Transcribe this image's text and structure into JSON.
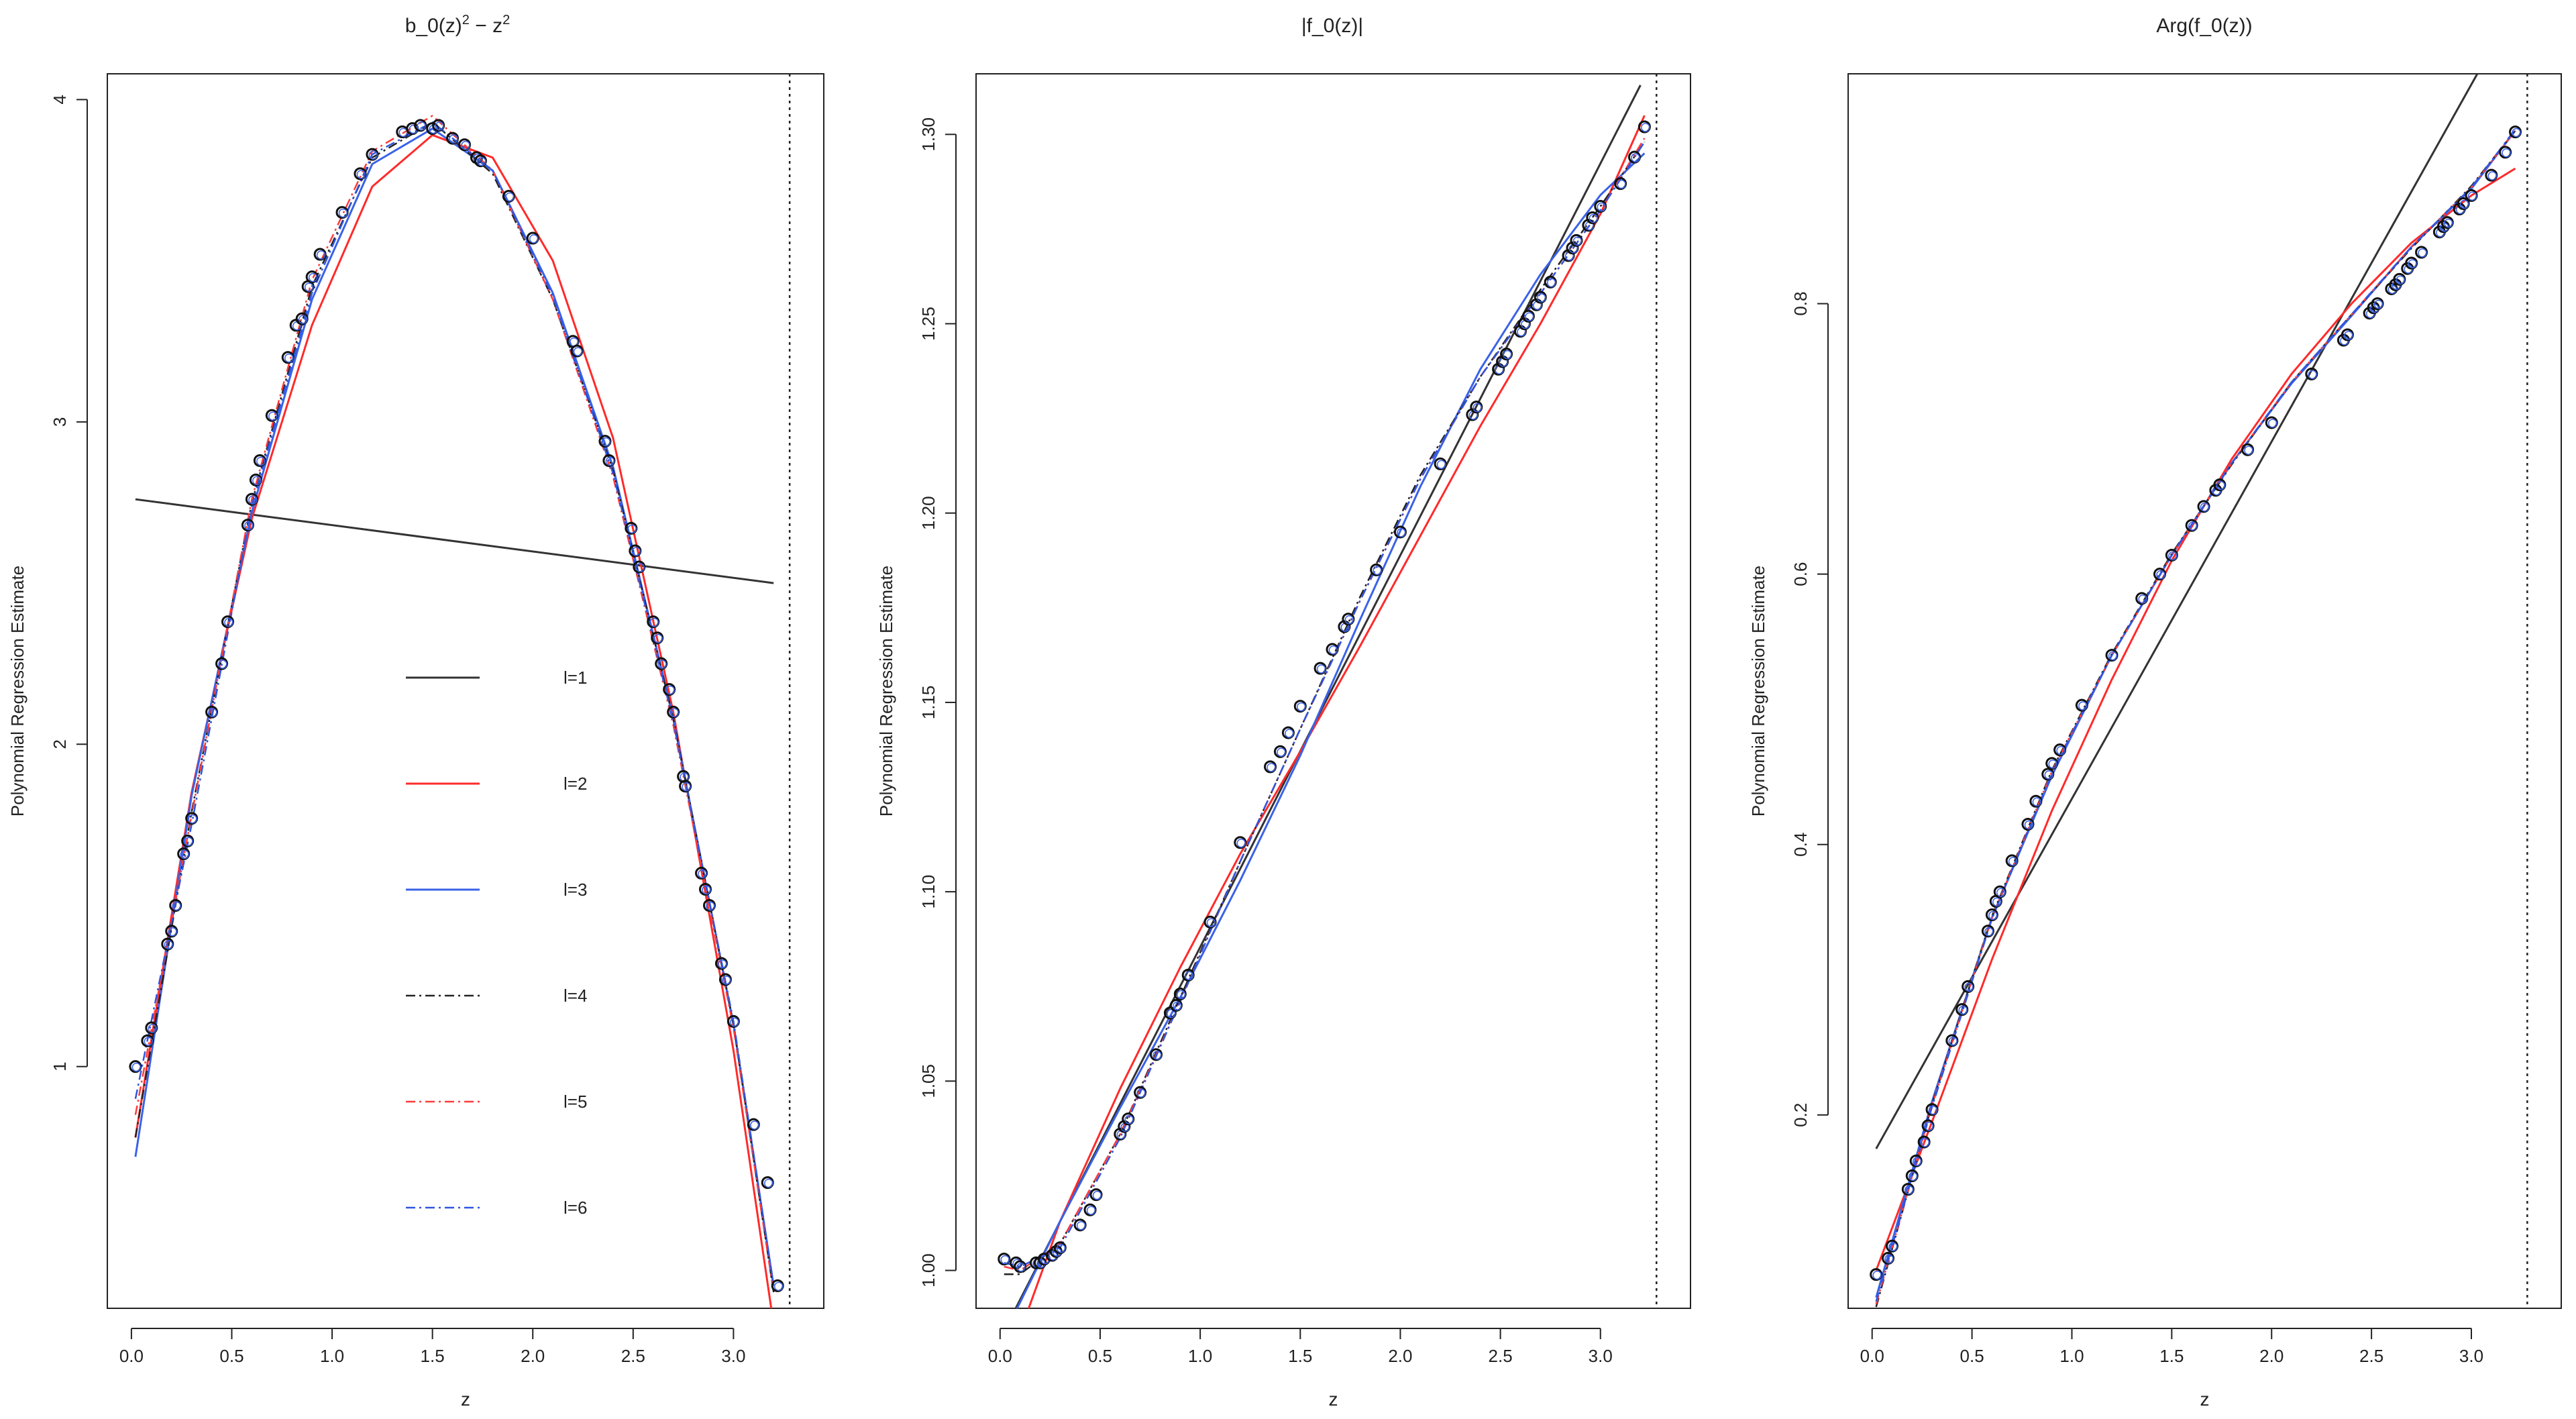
{
  "colors": {
    "l1": "#333333",
    "l2": "#ff2a2a",
    "l3": "#3a62e8",
    "l4": "#222222",
    "l5": "#ff3b3b",
    "l6": "#2f55e0",
    "points": "#111111",
    "background": "#ffffff"
  },
  "chart_data": [
    {
      "type": "scatter",
      "title": "b_0(z)^2 − z^2",
      "title_parts": {
        "base": "b_0(z)",
        "exp1": "2",
        "mid": " − z",
        "exp2": "2"
      },
      "xlabel": "z",
      "ylabel": "Polynomial Regression Estimate",
      "xlim": [
        -0.12,
        3.45
      ],
      "ylim": [
        0.25,
        4.08
      ],
      "xticks": [
        0.0,
        0.5,
        1.0,
        1.5,
        2.0,
        2.5,
        3.0
      ],
      "xtick_labels": [
        "0.0",
        "0.5",
        "1.0",
        "1.5",
        "2.0",
        "2.5",
        "3.0"
      ],
      "yticks": [
        1,
        2,
        3,
        4
      ],
      "ytick_labels": [
        "1",
        "2",
        "3",
        "4"
      ],
      "vline_x": 3.28,
      "legend": {
        "placement": "center-left",
        "entries": [
          {
            "label": "l=1",
            "style": "solid"
          },
          {
            "label": "l=2",
            "style": "solid"
          },
          {
            "label": "l=3",
            "style": "solid"
          },
          {
            "label": "l=4",
            "style": "dashdot"
          },
          {
            "label": "l=5",
            "style": "dashdot"
          },
          {
            "label": "l=6",
            "style": "dashdot"
          }
        ]
      },
      "points": {
        "x": [
          0.02,
          0.08,
          0.1,
          0.18,
          0.2,
          0.22,
          0.26,
          0.28,
          0.3,
          0.4,
          0.45,
          0.48,
          0.58,
          0.6,
          0.62,
          0.64,
          0.7,
          0.78,
          0.82,
          0.85,
          0.88,
          0.9,
          0.94,
          1.05,
          1.14,
          1.2,
          1.35,
          1.4,
          1.44,
          1.5,
          1.53,
          1.6,
          1.66,
          1.72,
          1.74,
          1.88,
          2.0,
          2.2,
          2.22,
          2.36,
          2.38,
          2.49,
          2.51,
          2.53,
          2.6,
          2.62,
          2.64,
          2.68,
          2.7,
          2.75,
          2.76,
          2.84,
          2.86,
          2.88,
          2.94,
          2.96,
          3.0,
          3.1,
          3.17,
          3.22
        ],
        "y": [
          1.0,
          1.08,
          1.12,
          1.38,
          1.42,
          1.5,
          1.66,
          1.7,
          1.77,
          2.1,
          2.25,
          2.38,
          2.68,
          2.76,
          2.82,
          2.88,
          3.02,
          3.2,
          3.3,
          3.32,
          3.42,
          3.45,
          3.52,
          3.65,
          3.77,
          3.83,
          3.9,
          3.91,
          3.92,
          3.91,
          3.92,
          3.88,
          3.86,
          3.82,
          3.81,
          3.7,
          3.57,
          3.25,
          3.22,
          2.94,
          2.88,
          2.67,
          2.6,
          2.55,
          2.38,
          2.33,
          2.25,
          2.17,
          2.1,
          1.9,
          1.87,
          1.6,
          1.55,
          1.5,
          1.32,
          1.27,
          1.14,
          0.82,
          0.64,
          0.32
        ]
      },
      "series": [
        {
          "name": "l=1",
          "x": [
            0.02,
            3.2
          ],
          "y": [
            2.76,
            2.5
          ]
        },
        {
          "name": "l=2",
          "x": [
            0.02,
            0.3,
            0.6,
            0.9,
            1.2,
            1.5,
            1.8,
            2.1,
            2.4,
            2.7,
            3.0,
            3.2
          ],
          "y": [
            0.78,
            1.85,
            2.7,
            3.3,
            3.73,
            3.89,
            3.82,
            3.5,
            2.95,
            2.1,
            1.05,
            0.2
          ]
        },
        {
          "name": "l=3",
          "x": [
            0.02,
            0.3,
            0.6,
            0.9,
            1.2,
            1.5,
            1.8,
            2.1,
            2.4,
            2.7,
            3.0,
            3.2
          ],
          "y": [
            0.72,
            1.84,
            2.72,
            3.38,
            3.8,
            3.91,
            3.78,
            3.4,
            2.86,
            2.08,
            1.13,
            0.32
          ]
        },
        {
          "name": "l=4",
          "x": [
            0.02,
            0.3,
            0.6,
            0.9,
            1.2,
            1.5,
            1.8,
            2.1,
            2.4,
            2.7,
            3.0,
            3.2
          ],
          "y": [
            0.78,
            1.79,
            2.75,
            3.42,
            3.82,
            3.93,
            3.77,
            3.38,
            2.85,
            2.08,
            1.13,
            0.3
          ]
        },
        {
          "name": "l=5",
          "x": [
            0.02,
            0.3,
            0.6,
            0.9,
            1.2,
            1.5,
            1.8,
            2.1,
            2.4,
            2.7,
            3.0,
            3.2
          ],
          "y": [
            0.85,
            1.78,
            2.76,
            3.44,
            3.84,
            3.95,
            3.78,
            3.38,
            2.83,
            2.06,
            1.12,
            0.3
          ]
        },
        {
          "name": "l=6",
          "x": [
            0.02,
            0.3,
            0.6,
            0.9,
            1.2,
            1.5,
            1.8,
            2.1,
            2.4,
            2.7,
            3.0,
            3.2
          ],
          "y": [
            0.9,
            1.75,
            2.74,
            3.4,
            3.83,
            3.93,
            3.78,
            3.39,
            2.84,
            2.07,
            1.14,
            0.32
          ]
        }
      ]
    },
    {
      "type": "scatter",
      "title": "|f_0(z)|",
      "xlabel": "z",
      "ylabel": "Polynomial Regression Estimate",
      "xlim": [
        -0.12,
        3.45
      ],
      "ylim": [
        0.99,
        1.316
      ],
      "xticks": [
        0.0,
        0.5,
        1.0,
        1.5,
        2.0,
        2.5,
        3.0
      ],
      "xtick_labels": [
        "0.0",
        "0.5",
        "1.0",
        "1.5",
        "2.0",
        "2.5",
        "3.0"
      ],
      "yticks": [
        1.0,
        1.05,
        1.1,
        1.15,
        1.2,
        1.25,
        1.3
      ],
      "ytick_labels": [
        "1.00",
        "1.05",
        "1.10",
        "1.15",
        "1.20",
        "1.25",
        "1.30"
      ],
      "vline_x": 3.28,
      "points": {
        "x": [
          0.02,
          0.08,
          0.1,
          0.18,
          0.2,
          0.22,
          0.26,
          0.28,
          0.3,
          0.4,
          0.45,
          0.48,
          0.6,
          0.62,
          0.64,
          0.7,
          0.78,
          0.85,
          0.88,
          0.9,
          0.94,
          1.05,
          1.2,
          1.35,
          1.4,
          1.44,
          1.5,
          1.6,
          1.66,
          1.72,
          1.74,
          1.88,
          2.0,
          2.2,
          2.36,
          2.38,
          2.49,
          2.51,
          2.53,
          2.6,
          2.62,
          2.64,
          2.68,
          2.7,
          2.75,
          2.84,
          2.86,
          2.88,
          2.94,
          2.96,
          3.0,
          3.1,
          3.17,
          3.22
        ],
        "y": [
          1.003,
          1.002,
          1.001,
          1.002,
          1.002,
          1.003,
          1.004,
          1.005,
          1.006,
          1.012,
          1.016,
          1.02,
          1.036,
          1.038,
          1.04,
          1.047,
          1.057,
          1.068,
          1.07,
          1.073,
          1.078,
          1.092,
          1.113,
          1.133,
          1.137,
          1.142,
          1.149,
          1.159,
          1.164,
          1.17,
          1.172,
          1.185,
          1.195,
          1.213,
          1.226,
          1.228,
          1.238,
          1.24,
          1.242,
          1.248,
          1.25,
          1.252,
          1.255,
          1.257,
          1.261,
          1.268,
          1.27,
          1.272,
          1.276,
          1.278,
          1.281,
          1.287,
          1.294,
          1.302
        ]
      },
      "series": [
        {
          "name": "l=1",
          "x": [
            0.02,
            3.2
          ],
          "y": [
            0.984,
            1.313
          ]
        },
        {
          "name": "l=2",
          "x": [
            0.02,
            0.3,
            0.6,
            0.9,
            1.2,
            1.5,
            1.8,
            2.1,
            2.4,
            2.7,
            3.0,
            3.22
          ],
          "y": [
            0.972,
            1.013,
            1.048,
            1.08,
            1.11,
            1.137,
            1.165,
            1.194,
            1.223,
            1.25,
            1.279,
            1.305
          ]
        },
        {
          "name": "l=3",
          "x": [
            0.02,
            0.3,
            0.6,
            0.9,
            1.2,
            1.5,
            1.8,
            2.1,
            2.4,
            2.7,
            3.0,
            3.22
          ],
          "y": [
            0.983,
            1.013,
            1.043,
            1.072,
            1.103,
            1.136,
            1.172,
            1.207,
            1.238,
            1.263,
            1.284,
            1.295
          ]
        },
        {
          "name": "l=4",
          "x": [
            0.02,
            0.1,
            0.3,
            0.6,
            0.9,
            1.2,
            1.5,
            1.8,
            2.1,
            2.4,
            2.7,
            3.0,
            3.22
          ],
          "y": [
            0.999,
            0.999,
            1.007,
            1.036,
            1.072,
            1.108,
            1.143,
            1.178,
            1.21,
            1.236,
            1.259,
            1.281,
            1.298
          ]
        },
        {
          "name": "l=5",
          "x": [
            0.02,
            0.1,
            0.3,
            0.6,
            0.9,
            1.2,
            1.5,
            1.8,
            2.1,
            2.4,
            2.7,
            3.0,
            3.22
          ],
          "y": [
            1.001,
            1.0,
            1.007,
            1.036,
            1.071,
            1.108,
            1.143,
            1.177,
            1.209,
            1.236,
            1.258,
            1.28,
            1.299
          ]
        },
        {
          "name": "l=6",
          "x": [
            0.02,
            0.1,
            0.3,
            0.6,
            0.9,
            1.2,
            1.5,
            1.8,
            2.1,
            2.4,
            2.7,
            3.0,
            3.22
          ],
          "y": [
            1.002,
            1.001,
            1.006,
            1.035,
            1.071,
            1.108,
            1.143,
            1.177,
            1.209,
            1.236,
            1.258,
            1.28,
            1.298
          ]
        }
      ]
    },
    {
      "type": "scatter",
      "title": "Arg(f_0(z))",
      "xlabel": "z",
      "ylabel": "Polynomial Regression Estimate",
      "xlim": [
        -0.12,
        3.45
      ],
      "ylim": [
        0.057,
        0.97
      ],
      "xticks": [
        0.0,
        0.5,
        1.0,
        1.5,
        2.0,
        2.5,
        3.0
      ],
      "xtick_labels": [
        "0.0",
        "0.5",
        "1.0",
        "1.5",
        "2.0",
        "2.5",
        "3.0"
      ],
      "yticks": [
        0.2,
        0.4,
        0.6,
        0.8
      ],
      "ytick_labels": [
        "0.2",
        "0.4",
        "0.6",
        "0.8"
      ],
      "vline_x": 3.28,
      "points": {
        "x": [
          0.02,
          0.08,
          0.1,
          0.18,
          0.2,
          0.22,
          0.26,
          0.28,
          0.3,
          0.4,
          0.45,
          0.48,
          0.58,
          0.6,
          0.62,
          0.64,
          0.7,
          0.78,
          0.82,
          0.88,
          0.9,
          0.94,
          1.05,
          1.2,
          1.35,
          1.44,
          1.5,
          1.6,
          1.66,
          1.72,
          1.74,
          1.88,
          2.0,
          2.2,
          2.36,
          2.38,
          2.49,
          2.51,
          2.53,
          2.6,
          2.62,
          2.64,
          2.68,
          2.7,
          2.75,
          2.84,
          2.86,
          2.88,
          2.94,
          2.96,
          3.0,
          3.1,
          3.17,
          3.22
        ],
        "y": [
          0.082,
          0.094,
          0.103,
          0.145,
          0.155,
          0.166,
          0.18,
          0.192,
          0.204,
          0.255,
          0.278,
          0.295,
          0.336,
          0.348,
          0.358,
          0.365,
          0.388,
          0.415,
          0.432,
          0.452,
          0.46,
          0.47,
          0.503,
          0.54,
          0.582,
          0.6,
          0.614,
          0.636,
          0.65,
          0.662,
          0.666,
          0.692,
          0.712,
          0.748,
          0.773,
          0.777,
          0.793,
          0.797,
          0.8,
          0.811,
          0.814,
          0.818,
          0.826,
          0.83,
          0.838,
          0.853,
          0.857,
          0.86,
          0.87,
          0.874,
          0.88,
          0.895,
          0.912,
          0.927
        ]
      },
      "series": [
        {
          "name": "l=1",
          "x": [
            0.02,
            3.03
          ],
          "y": [
            0.175,
            0.97
          ]
        },
        {
          "name": "l=2",
          "x": [
            0.02,
            0.3,
            0.6,
            0.9,
            1.2,
            1.5,
            1.8,
            2.1,
            2.4,
            2.7,
            3.0,
            3.22
          ],
          "y": [
            0.085,
            0.195,
            0.315,
            0.425,
            0.522,
            0.61,
            0.685,
            0.748,
            0.8,
            0.845,
            0.88,
            0.9
          ]
        },
        {
          "name": "l=3",
          "x": [
            0.02,
            0.3,
            0.6,
            0.9,
            1.2,
            1.5,
            1.8,
            2.1,
            2.4,
            2.7,
            3.0,
            3.22
          ],
          "y": [
            0.065,
            0.21,
            0.346,
            0.451,
            0.54,
            0.614,
            0.682,
            0.741,
            0.791,
            0.842,
            0.885,
            0.928
          ]
        },
        {
          "name": "l=4",
          "x": [
            0.02,
            0.3,
            0.6,
            0.9,
            1.2,
            1.5,
            1.8,
            2.1,
            2.4,
            2.7,
            3.0,
            3.22
          ],
          "y": [
            0.058,
            0.208,
            0.347,
            0.455,
            0.541,
            0.615,
            0.681,
            0.742,
            0.792,
            0.841,
            0.887,
            0.928
          ]
        },
        {
          "name": "l=5",
          "x": [
            0.02,
            0.3,
            0.6,
            0.9,
            1.2,
            1.5,
            1.8,
            2.1,
            2.4,
            2.7,
            3.0,
            3.22
          ],
          "y": [
            0.06,
            0.207,
            0.346,
            0.454,
            0.54,
            0.614,
            0.682,
            0.742,
            0.792,
            0.842,
            0.886,
            0.928
          ]
        },
        {
          "name": "l=6",
          "x": [
            0.02,
            0.3,
            0.6,
            0.9,
            1.2,
            1.5,
            1.8,
            2.1,
            2.4,
            2.7,
            3.0,
            3.22
          ],
          "y": [
            0.062,
            0.206,
            0.345,
            0.453,
            0.54,
            0.614,
            0.682,
            0.742,
            0.792,
            0.842,
            0.886,
            0.929
          ]
        }
      ]
    }
  ]
}
